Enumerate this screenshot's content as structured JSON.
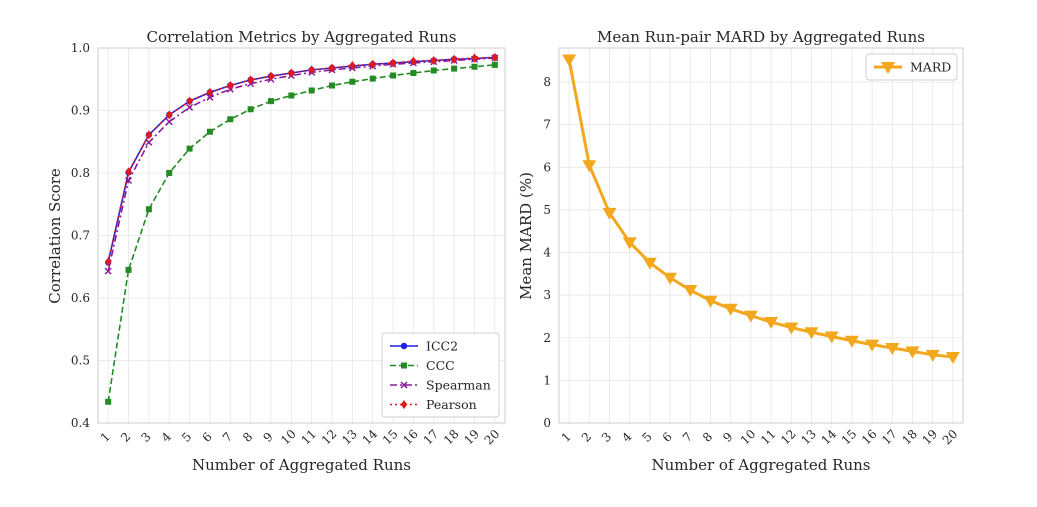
{
  "colors": {
    "icc2": "#1f1fe0",
    "ccc": "#228b22",
    "spearman": "#8b1a9b",
    "pearson": "#e01919",
    "mard": "#f2a71c",
    "grid": "#e6e6e6",
    "spine": "#cccccc"
  },
  "chart_data": [
    {
      "type": "line",
      "title": "Correlation Metrics by Aggregated Runs",
      "xlabel": "Number of Aggregated Runs",
      "ylabel": "Correlation Score",
      "x": [
        1,
        2,
        3,
        4,
        5,
        6,
        7,
        8,
        9,
        10,
        11,
        12,
        13,
        14,
        15,
        16,
        17,
        18,
        19,
        20
      ],
      "xlim": [
        0.5,
        20.5
      ],
      "ylim": [
        0.4,
        1.0
      ],
      "yticks": [
        "0.4",
        "0.5",
        "0.6",
        "0.7",
        "0.8",
        "0.9",
        "1.0"
      ],
      "grid": true,
      "legend_position": "lower-right",
      "series": [
        {
          "name": "ICC2",
          "marker": "circle",
          "linestyle": "solid",
          "values": [
            0.657,
            0.801,
            0.861,
            0.893,
            0.915,
            0.929,
            0.94,
            0.949,
            0.955,
            0.96,
            0.965,
            0.968,
            0.971,
            0.974,
            0.976,
            0.978,
            0.98,
            0.982,
            0.983,
            0.985
          ]
        },
        {
          "name": "CCC",
          "marker": "square",
          "linestyle": "dashed",
          "values": [
            0.434,
            0.645,
            0.742,
            0.8,
            0.839,
            0.866,
            0.886,
            0.902,
            0.915,
            0.924,
            0.932,
            0.94,
            0.946,
            0.951,
            0.956,
            0.96,
            0.964,
            0.967,
            0.97,
            0.973
          ]
        },
        {
          "name": "Spearman",
          "marker": "x",
          "linestyle": "dashdot",
          "values": [
            0.643,
            0.788,
            0.849,
            0.882,
            0.905,
            0.921,
            0.934,
            0.943,
            0.95,
            0.956,
            0.961,
            0.965,
            0.968,
            0.971,
            0.974,
            0.976,
            0.978,
            0.98,
            0.982,
            0.984
          ]
        },
        {
          "name": "Pearson",
          "marker": "diamond",
          "linestyle": "dotted",
          "values": [
            0.658,
            0.802,
            0.861,
            0.893,
            0.915,
            0.929,
            0.94,
            0.949,
            0.955,
            0.96,
            0.965,
            0.968,
            0.972,
            0.974,
            0.976,
            0.979,
            0.98,
            0.982,
            0.984,
            0.985
          ]
        }
      ]
    },
    {
      "type": "line",
      "title": "Mean Run-pair MARD by Aggregated Runs",
      "xlabel": "Number of Aggregated Runs",
      "ylabel": "Mean MARD (%)",
      "x": [
        1,
        2,
        3,
        4,
        5,
        6,
        7,
        8,
        9,
        10,
        11,
        12,
        13,
        14,
        15,
        16,
        17,
        18,
        19,
        20
      ],
      "xlim": [
        0.5,
        20.5
      ],
      "ylim": [
        0,
        8.8
      ],
      "yticks": [
        "0",
        "1",
        "2",
        "3",
        "4",
        "5",
        "6",
        "7",
        "8"
      ],
      "grid": true,
      "legend_position": "top-right",
      "series": [
        {
          "name": "MARD",
          "marker": "triangle-down",
          "linestyle": "solid",
          "values": [
            8.53,
            6.05,
            4.93,
            4.24,
            3.76,
            3.41,
            3.12,
            2.87,
            2.68,
            2.52,
            2.37,
            2.24,
            2.13,
            2.03,
            1.93,
            1.84,
            1.76,
            1.68,
            1.6,
            1.55
          ]
        }
      ]
    }
  ]
}
